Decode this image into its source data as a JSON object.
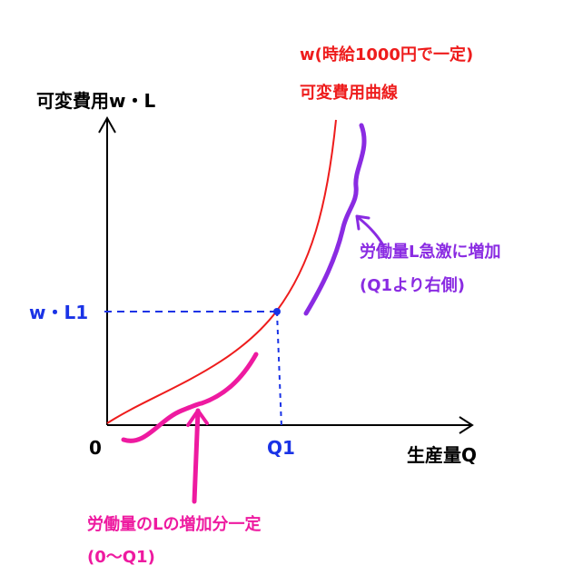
{
  "labels": {
    "y_axis": "可変費用w・L",
    "x_axis": "生産量Q",
    "origin": "0",
    "q1": "Q1",
    "wl1": "w・L1",
    "curve_title_line1": "w(時給1000円で一定)",
    "curve_title_line2": "可変費用曲線",
    "right_note_line1": "労働量L急激に増加",
    "right_note_line2": "(Q1より右側)",
    "left_note_line1": "労働量のLの増加分一定",
    "left_note_line2": "(0〜Q1)"
  },
  "colors": {
    "axis": "#000000",
    "curve": "#ee1c1c",
    "guide": "#1a33e6",
    "purple": "#8a2be2",
    "pink": "#ee1aa0"
  }
}
